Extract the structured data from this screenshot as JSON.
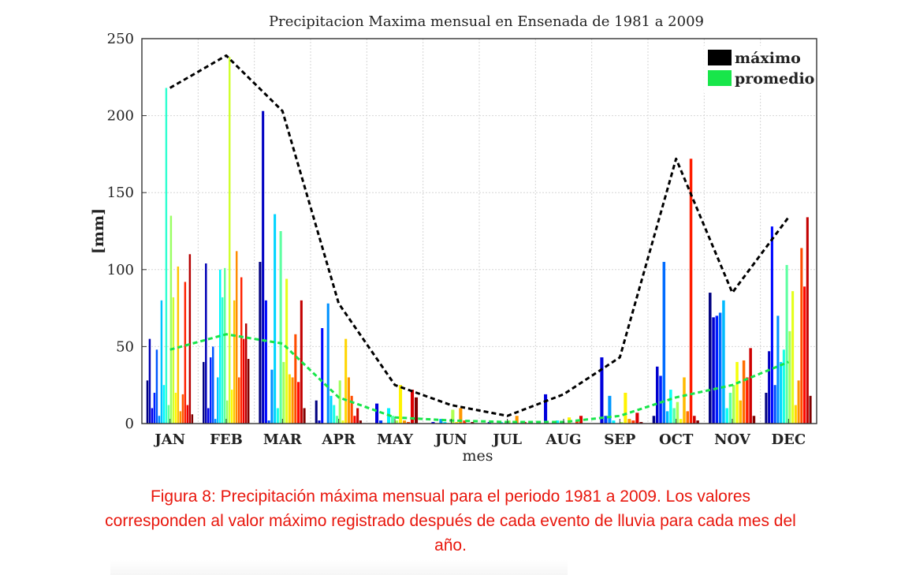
{
  "chart_data": {
    "type": "bar",
    "title": "Precipitacion Maxima mensual en Ensenada de 1981 a 2009",
    "xlabel": "mes",
    "ylabel": "[mm]",
    "ylim": [
      0,
      250
    ],
    "yticks": [
      0,
      50,
      100,
      150,
      200,
      250
    ],
    "grid": true,
    "legend_position": "top-right",
    "categories": [
      "JAN",
      "FEB",
      "MAR",
      "APR",
      "MAY",
      "JUN",
      "JUL",
      "AUG",
      "SEP",
      "OCT",
      "NOV",
      "DEC"
    ],
    "yearly_bars": {
      "colormap": "jet",
      "description_years": [
        1981,
        2009
      ],
      "values": {
        "JAN": [
          28,
          55,
          10,
          20,
          48,
          5,
          80,
          25,
          218,
          12,
          135,
          82,
          20,
          102,
          8,
          19,
          92,
          12,
          110,
          6
        ],
        "FEB": [
          40,
          104,
          10,
          43,
          50,
          3,
          30,
          100,
          82,
          101,
          15,
          238,
          22,
          80,
          112,
          30,
          95,
          55,
          65,
          42
        ],
        "MAR": [
          105,
          203,
          80,
          2,
          35,
          136,
          10,
          125,
          40,
          94,
          32,
          30,
          58,
          27,
          80,
          10
        ],
        "APR": [
          15,
          2,
          62,
          0,
          78,
          18,
          12,
          5,
          28,
          2,
          55,
          30,
          18,
          5,
          10,
          2
        ],
        "MAY": [
          0,
          13,
          2,
          0,
          10,
          5,
          2,
          25,
          2,
          1,
          22,
          17
        ],
        "JUN": [
          0,
          1,
          0,
          3,
          1,
          0,
          9,
          1,
          10,
          2,
          0,
          1
        ],
        "JUL": [
          0,
          1,
          0,
          0,
          1,
          0,
          2,
          0,
          5,
          0,
          1,
          0
        ],
        "AUG": [
          0,
          19,
          0,
          1,
          2,
          1,
          0,
          4,
          0,
          2,
          5,
          0
        ],
        "SEP": [
          0,
          43,
          5,
          18,
          2,
          0,
          1,
          20,
          3,
          2,
          7,
          1
        ],
        "OCT": [
          5,
          37,
          31,
          105,
          8,
          22,
          10,
          14,
          3,
          30,
          8,
          172,
          5,
          2
        ],
        "NOV": [
          85,
          69,
          70,
          72,
          80,
          10,
          20,
          25,
          40,
          15,
          41,
          30,
          49,
          5
        ],
        "DEC": [
          20,
          47,
          128,
          25,
          70,
          40,
          48,
          103,
          60,
          86,
          12,
          28,
          114,
          89,
          134,
          18
        ]
      }
    },
    "series": [
      {
        "name": "máximo",
        "type": "line",
        "style": "dashed",
        "color": "#000000",
        "values": [
          218,
          239,
          203,
          78,
          25,
          12,
          5,
          19,
          43,
          172,
          85,
          134
        ]
      },
      {
        "name": "promedio",
        "type": "line",
        "style": "dashed",
        "color": "#18e64a",
        "values": [
          48,
          58,
          52,
          17,
          4,
          2,
          1,
          1,
          5,
          17,
          25,
          40
        ]
      }
    ]
  },
  "caption": {
    "line1": "Figura 8: Precipitación máxima mensual para el periodo 1981 a 2009. Los valores",
    "line2": "corresponden al valor máximo registrado después de cada evento de lluvia para cada mes del",
    "line3": "año."
  }
}
